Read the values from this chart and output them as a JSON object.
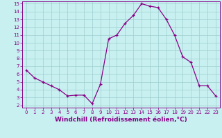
{
  "x": [
    0,
    1,
    2,
    3,
    4,
    5,
    6,
    7,
    8,
    9,
    10,
    11,
    12,
    13,
    14,
    15,
    16,
    17,
    18,
    19,
    20,
    21,
    22,
    23
  ],
  "y": [
    6.5,
    5.5,
    5.0,
    4.5,
    4.0,
    3.2,
    3.3,
    3.3,
    2.2,
    4.7,
    10.5,
    11.0,
    12.5,
    13.5,
    15.0,
    14.7,
    14.5,
    13.0,
    11.0,
    8.2,
    7.5,
    4.5,
    4.5,
    3.2
  ],
  "line_color": "#880088",
  "marker": "+",
  "bg_color": "#c8f0f0",
  "grid_color": "#9ecece",
  "xlabel": "Windchill (Refroidissement éolien,°C)",
  "ylim_min": 1.7,
  "ylim_max": 15.3,
  "xlim_min": -0.5,
  "xlim_max": 23.5,
  "yticks": [
    2,
    3,
    4,
    5,
    6,
    7,
    8,
    9,
    10,
    11,
    12,
    13,
    14,
    15
  ],
  "xticks": [
    0,
    1,
    2,
    3,
    4,
    5,
    6,
    7,
    8,
    9,
    10,
    11,
    12,
    13,
    14,
    15,
    16,
    17,
    18,
    19,
    20,
    21,
    22,
    23
  ],
  "tick_color": "#880088",
  "tick_labelsize": 5.0,
  "xlabel_fontsize": 6.5,
  "spine_color": "#880088",
  "linewidth": 0.9,
  "markersize": 3.5,
  "markeredgewidth": 0.9
}
